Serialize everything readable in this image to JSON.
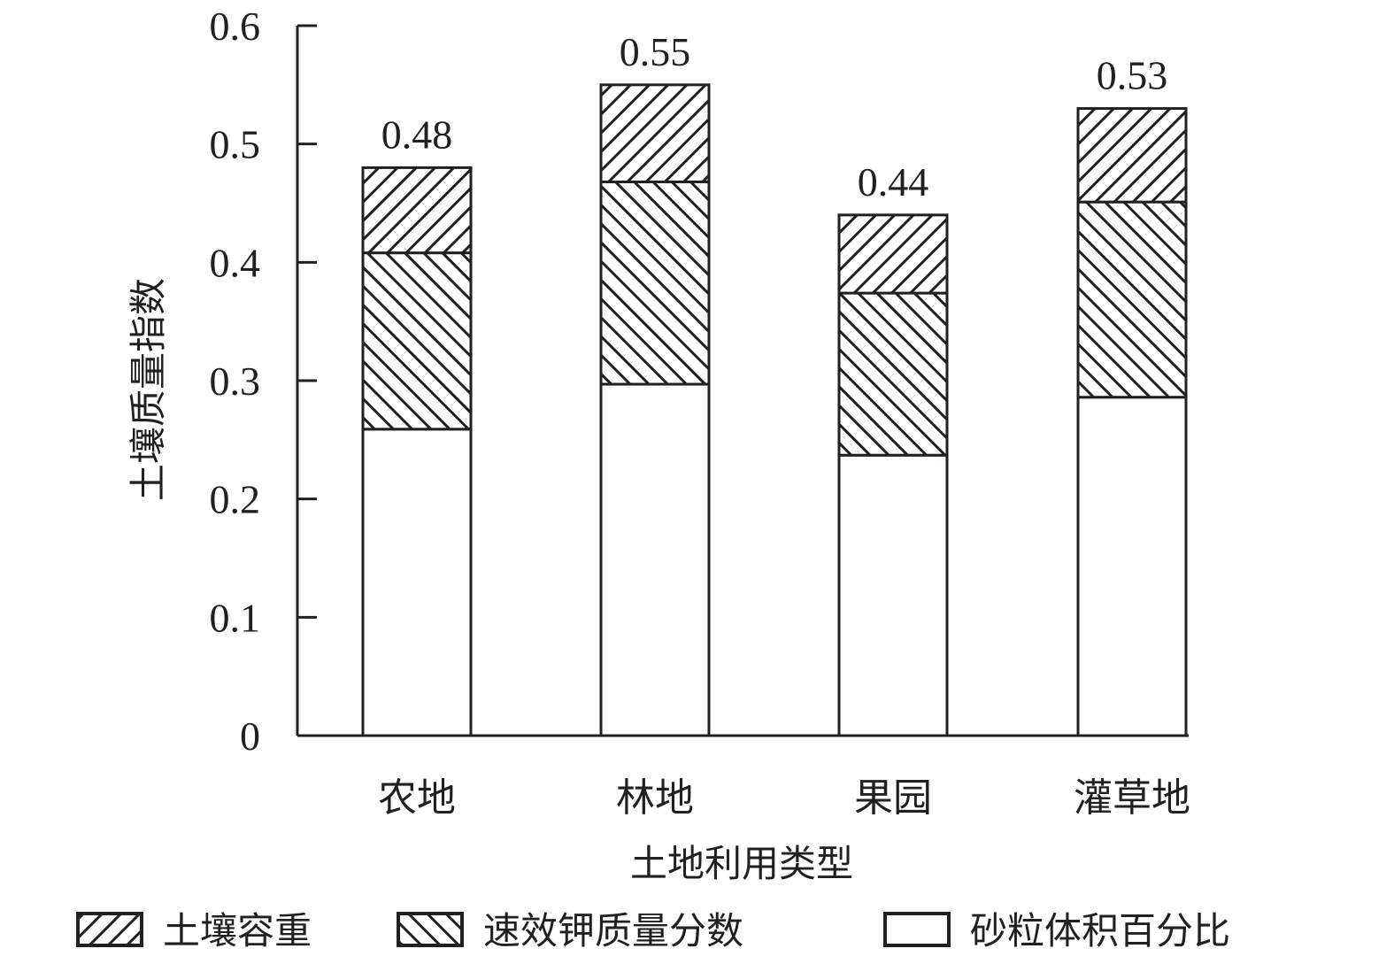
{
  "chart_data": {
    "type": "bar",
    "stacked": true,
    "xlabel": "土地利用类型",
    "ylabel": "土壤质量指数",
    "ylim": [
      0,
      0.6
    ],
    "yticks": [
      "0",
      "0.1",
      "0.2",
      "0.3",
      "0.4",
      "0.5",
      "0.6"
    ],
    "categories": [
      "农地",
      "林地",
      "果园",
      "灌草地"
    ],
    "series": [
      {
        "name": "砂粒体积百分比",
        "pattern": "none",
        "values": [
          0.259,
          0.297,
          0.237,
          0.286
        ]
      },
      {
        "name": "速效钾质量分数",
        "pattern": "forward-diagonal",
        "values": [
          0.149,
          0.171,
          0.137,
          0.165
        ]
      },
      {
        "name": "土壤容重",
        "pattern": "back-diagonal",
        "values": [
          0.072,
          0.082,
          0.066,
          0.079
        ]
      }
    ],
    "totals": [
      "0.48",
      "0.55",
      "0.44",
      "0.53"
    ],
    "legend": {
      "placement": "bottom",
      "order": [
        "土壤容重",
        "速效钾质量分数",
        "砂粒体积百分比"
      ]
    },
    "grid": false,
    "colors": {
      "stroke": "#231f20",
      "fill": "#ffffff"
    }
  }
}
